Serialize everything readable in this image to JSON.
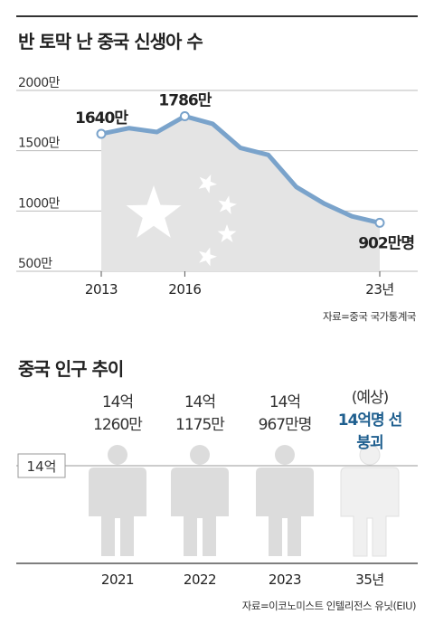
{
  "chart1": {
    "title": "반 토막 난 중국 신생아 수",
    "source": "자료=중국 국가통계국",
    "colors": {
      "line": "#7aa3cb",
      "area": "#e4e4e4",
      "point_fill": "#ffffff"
    }
  },
  "chart2": {
    "title": "중국 인구 추이",
    "source": "자료=이코노미스트 인텔리전스 유닛(EIU)",
    "reference_label": "14억",
    "colors": {
      "figure": "#dcdcdc",
      "figure_forecast": "#f0f0f0",
      "forecast_text": "#1f5f8f"
    }
  },
  "chart_data": [
    {
      "type": "area",
      "title": "반 토막 난 중국 신생아 수",
      "x": [
        2013,
        2014,
        2015,
        2016,
        2017,
        2018,
        2019,
        2020,
        2021,
        2022,
        2023
      ],
      "values": [
        1640,
        1687,
        1655,
        1786,
        1723,
        1523,
        1465,
        1200,
        1062,
        956,
        902
      ],
      "ylim": [
        500,
        2000
      ],
      "y_ticks": [
        {
          "value": 2000,
          "label": "2000만"
        },
        {
          "value": 1500,
          "label": "1500만"
        },
        {
          "value": 1000,
          "label": "1000만"
        },
        {
          "value": 500,
          "label": "500만"
        }
      ],
      "x_ticks": [
        {
          "value": 2013,
          "label": "2013"
        },
        {
          "value": 2016,
          "label": "2016"
        },
        {
          "value": 2023,
          "label": "23년"
        }
      ],
      "annotations": [
        {
          "x": 2013,
          "label": "1640만"
        },
        {
          "x": 2016,
          "label": "1786만"
        },
        {
          "x": 2023,
          "label": "902만명"
        }
      ],
      "grid": true
    },
    {
      "type": "bar",
      "title": "중국 인구 추이",
      "categories": [
        "2021",
        "2022",
        "2023",
        "35년"
      ],
      "values": [
        1412.6,
        1411.75,
        1409.67,
        null
      ],
      "value_labels": [
        [
          "14억",
          "1260만"
        ],
        [
          "14억",
          "1175만"
        ],
        [
          "14억",
          "967만명"
        ],
        [
          "(예상)",
          "14억명 선",
          "붕괴"
        ]
      ],
      "unit": "만명",
      "forecast_index": 3
    }
  ]
}
